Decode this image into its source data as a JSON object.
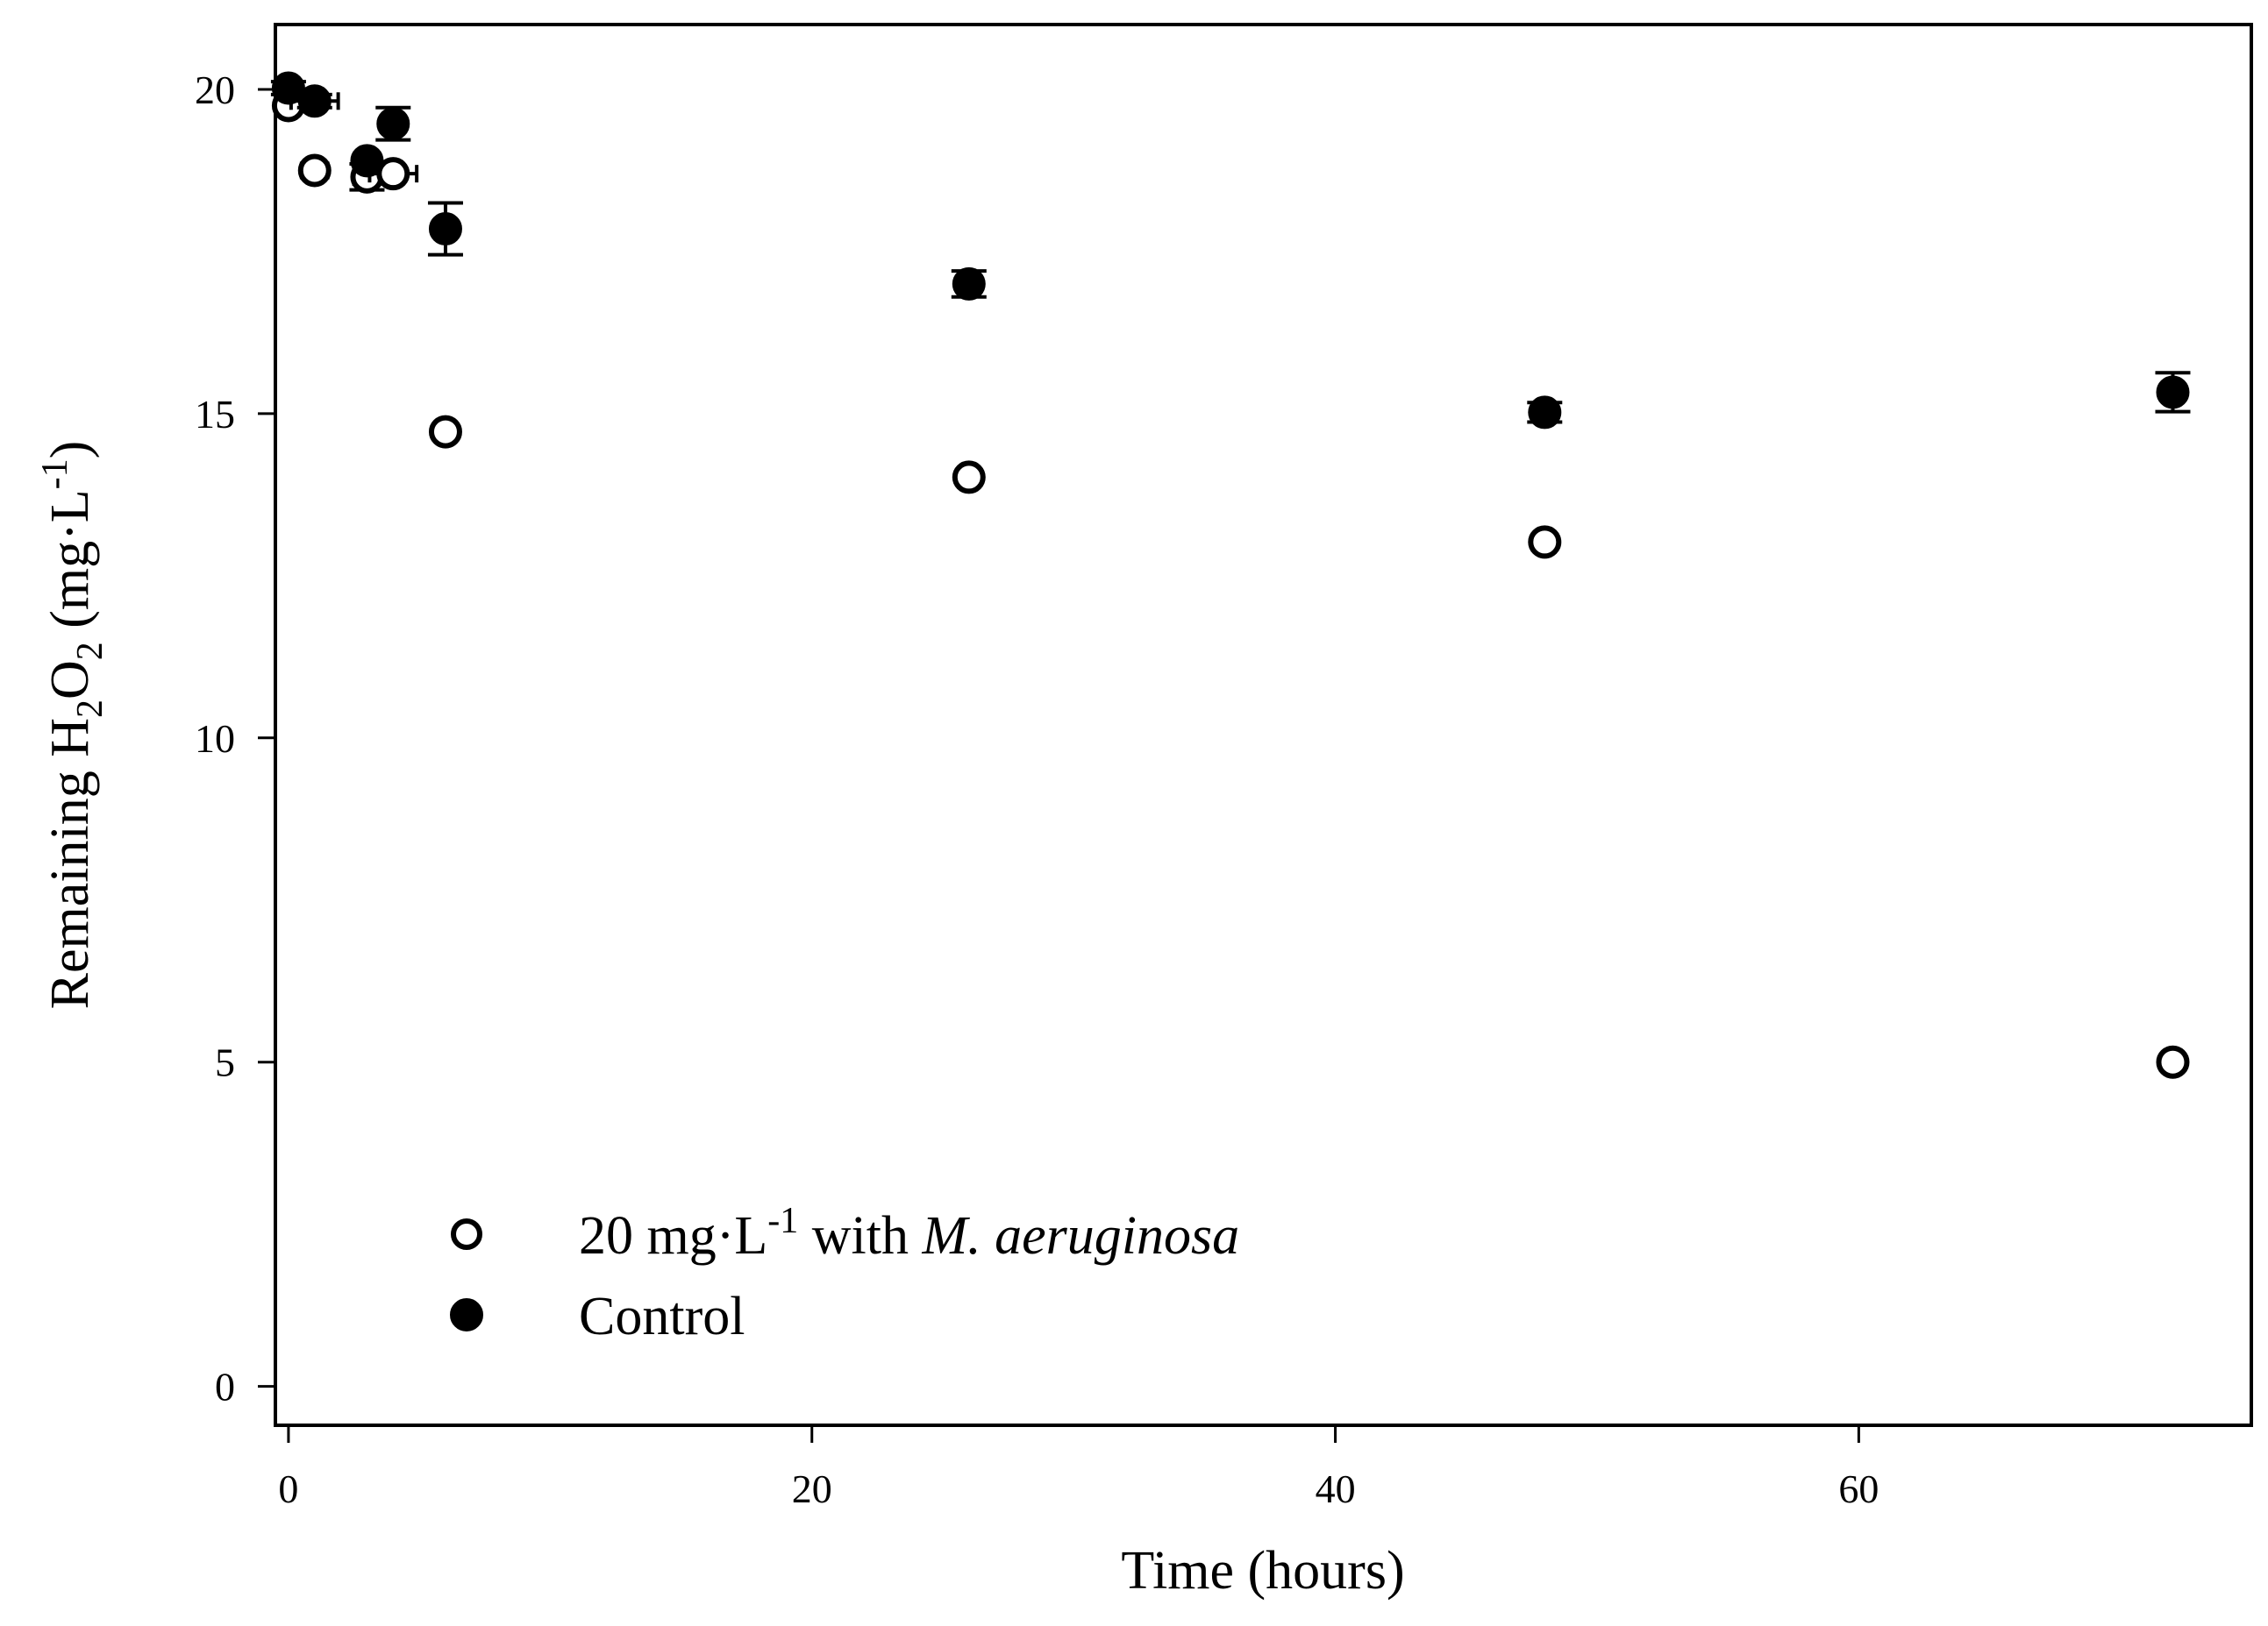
{
  "chart_data": {
    "type": "scatter",
    "title": "",
    "xlabel": "Time (hours)",
    "ylabel": {
      "prefix": "Remaining H",
      "sub1": "2",
      "mid": "O",
      "sub2": "2",
      "unit_open": " (mg·L",
      "sup": "-1",
      "unit_close": ")"
    },
    "xlim": [
      -0.5,
      75
    ],
    "ylim": [
      -0.6,
      21
    ],
    "xticks": [
      0,
      20,
      40,
      60
    ],
    "xtick_labels": [
      "0",
      "20",
      "40",
      "60"
    ],
    "yticks": [
      0,
      5,
      10,
      15,
      20
    ],
    "ytick_labels": [
      "0",
      "5",
      "10",
      "15",
      "20"
    ],
    "grid": false,
    "legend_position": "bottom-left",
    "series": [
      {
        "name": "20 mg·L-1 with M. aeruginosa",
        "marker": "open-circle",
        "color": "#ffffff",
        "points": [
          {
            "x": 0,
            "y": 19.75,
            "xerr": 0,
            "yerr": 0
          },
          {
            "x": 1,
            "y": 18.75,
            "xerr": 0.5,
            "yerr": 0
          },
          {
            "x": 3,
            "y": 18.65,
            "xerr": 0.5,
            "yerr": 0.2
          },
          {
            "x": 4,
            "y": 18.7,
            "xerr": 0.9,
            "yerr": 0
          },
          {
            "x": 6,
            "y": 14.72,
            "xerr": 0.3,
            "yerr": 0
          },
          {
            "x": 26,
            "y": 14.02,
            "xerr": 0.4,
            "yerr": 0
          },
          {
            "x": 48,
            "y": 13.02,
            "xerr": 0.4,
            "yerr": 0
          },
          {
            "x": 72,
            "y": 5.0,
            "xerr": 0.4,
            "yerr": 0
          }
        ]
      },
      {
        "name": "Control",
        "marker": "filled-circle",
        "color": "#000000",
        "points": [
          {
            "x": 0,
            "y": 20.02,
            "xerr": 0,
            "yerr": 0.1
          },
          {
            "x": 1,
            "y": 19.82,
            "xerr": 0.9,
            "yerr": 0.1
          },
          {
            "x": 3,
            "y": 18.9,
            "xerr": 0,
            "yerr": 0
          },
          {
            "x": 4,
            "y": 19.47,
            "xerr": 0,
            "yerr": 0.25
          },
          {
            "x": 6,
            "y": 17.85,
            "xerr": 0,
            "yerr": 0.4
          },
          {
            "x": 26,
            "y": 17.0,
            "xerr": 0,
            "yerr": 0.2
          },
          {
            "x": 48,
            "y": 15.02,
            "xerr": 0.3,
            "yerr": 0.15
          },
          {
            "x": 72,
            "y": 15.33,
            "xerr": 0,
            "yerr": 0.3
          }
        ]
      }
    ],
    "legend": [
      {
        "marker": "open-circle",
        "label_prefix": "20 mg·L",
        "label_sup": "-1",
        "label_mid": " with ",
        "label_italic": "M. aeruginosa"
      },
      {
        "marker": "filled-circle",
        "label_prefix": "Control",
        "label_sup": "",
        "label_mid": "",
        "label_italic": ""
      }
    ]
  }
}
